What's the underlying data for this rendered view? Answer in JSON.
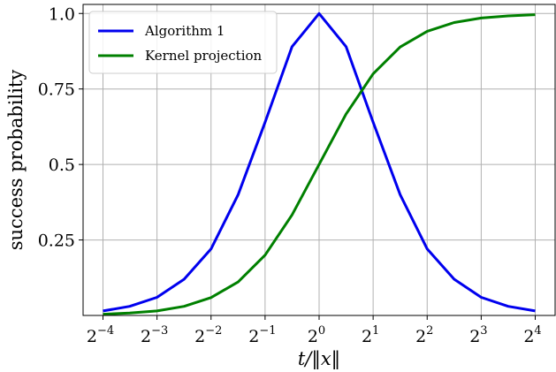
{
  "chart_data": {
    "type": "line",
    "xlabel": "t/‖x‖",
    "ylabel": "success probability",
    "x_scale": "log2",
    "xlim": [
      0.0625,
      16
    ],
    "ylim": [
      0.0,
      1.03
    ],
    "x_ticks": [
      0.0625,
      0.125,
      0.25,
      0.5,
      1,
      2,
      4,
      8,
      16
    ],
    "x_tick_labels": [
      {
        "base": "2",
        "exp": "−4"
      },
      {
        "base": "2",
        "exp": "−3"
      },
      {
        "base": "2",
        "exp": "−2"
      },
      {
        "base": "2",
        "exp": "−1"
      },
      {
        "base": "2",
        "exp": "0"
      },
      {
        "base": "2",
        "exp": "1"
      },
      {
        "base": "2",
        "exp": "2"
      },
      {
        "base": "2",
        "exp": "3"
      },
      {
        "base": "2",
        "exp": "4"
      }
    ],
    "y_ticks": [
      0.25,
      0.5,
      0.75,
      1.0
    ],
    "y_tick_labels": [
      "0.25",
      "0.5",
      "0.75",
      "1.0"
    ],
    "grid": true,
    "legend_position": "top-left",
    "series": [
      {
        "name": "Algorithm 1",
        "color": "#0000ee",
        "x": [
          0.0625,
          0.088,
          0.125,
          0.177,
          0.25,
          0.354,
          0.5,
          0.707,
          1,
          1.414,
          2,
          2.828,
          4,
          5.657,
          8,
          11.31,
          16
        ],
        "y": [
          0.015,
          0.03,
          0.06,
          0.12,
          0.22,
          0.4,
          0.64,
          0.89,
          1.0,
          0.89,
          0.64,
          0.4,
          0.22,
          0.12,
          0.06,
          0.03,
          0.015
        ]
      },
      {
        "name": "Kernel projection",
        "color": "#008000",
        "x": [
          0.0625,
          0.088,
          0.125,
          0.177,
          0.25,
          0.354,
          0.5,
          0.707,
          1,
          1.414,
          2,
          2.828,
          4,
          5.657,
          8,
          11.31,
          16
        ],
        "y": [
          0.004,
          0.008,
          0.015,
          0.03,
          0.059,
          0.111,
          0.2,
          0.333,
          0.5,
          0.667,
          0.8,
          0.889,
          0.941,
          0.97,
          0.985,
          0.992,
          0.996
        ]
      }
    ]
  }
}
